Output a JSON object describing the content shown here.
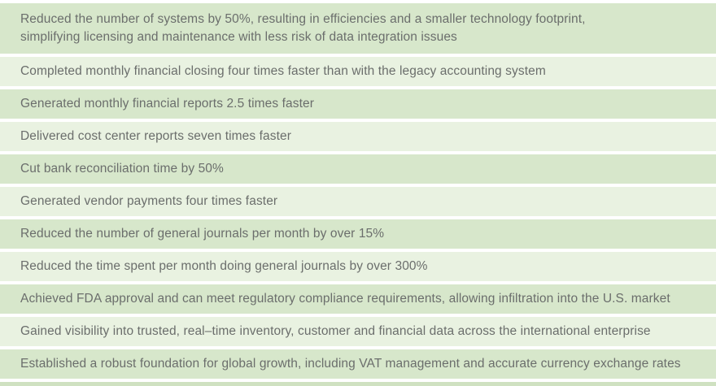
{
  "table": {
    "description": "alternating-striped benefits list",
    "rows": [
      {
        "lines": [
          "Reduced the number of systems by 50%, resulting in efficiencies and a smaller technology footprint,",
          "simplifying licensing and maintenance with less risk of data integration issues"
        ]
      },
      {
        "lines": [
          "Completed monthly financial closing four times faster than with the legacy accounting system"
        ]
      },
      {
        "lines": [
          "Generated monthly financial reports 2.5 times faster"
        ]
      },
      {
        "lines": [
          "Delivered cost center reports seven times faster"
        ]
      },
      {
        "lines": [
          "Cut bank reconciliation time by 50%"
        ]
      },
      {
        "lines": [
          "Generated vendor payments four times faster"
        ]
      },
      {
        "lines": [
          "Reduced the number of general journals per month by over 15%"
        ]
      },
      {
        "lines": [
          "Reduced the time spent per month doing general journals by over 300%"
        ]
      },
      {
        "lines": [
          "Achieved FDA approval and can meet regulatory compliance requirements, allowing infiltration into the U.S. market"
        ]
      },
      {
        "lines": [
          "Gained visibility into trusted, real–time inventory, customer and financial data across the international enterprise"
        ]
      },
      {
        "lines": [
          "Established a robust foundation for global growth, including VAT management and accurate currency exchange rates"
        ]
      }
    ],
    "colors": {
      "row_dark": "#d7e7cb",
      "row_light": "#e9f2e1",
      "text": "#6b6e6c",
      "bottom_strip": "#cfe1c1",
      "background": "#ffffff"
    }
  }
}
